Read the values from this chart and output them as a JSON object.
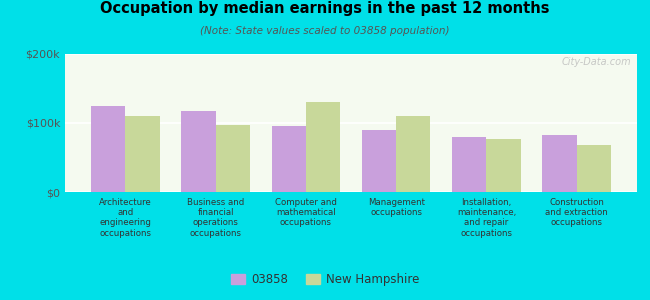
{
  "title": "Occupation by median earnings in the past 12 months",
  "subtitle": "(Note: State values scaled to 03858 population)",
  "categories": [
    "Architecture\nand\nengineering\noccupations",
    "Business and\nfinancial\noperations\noccupations",
    "Computer and\nmathematical\noccupations",
    "Management\noccupations",
    "Installation,\nmaintenance,\nand repair\noccupations",
    "Construction\nand extraction\noccupations"
  ],
  "values_03858": [
    125000,
    117000,
    95000,
    90000,
    80000,
    82000
  ],
  "values_nh": [
    110000,
    97000,
    130000,
    110000,
    77000,
    68000
  ],
  "bar_color_03858": "#c9a0dc",
  "bar_color_nh": "#c8d89a",
  "background_outer": "#00e0e8",
  "background_inner": "#f5faf0",
  "ylim": [
    0,
    200000
  ],
  "yticks": [
    0,
    100000,
    200000
  ],
  "ytick_labels": [
    "$0",
    "$100k",
    "$200k"
  ],
  "legend_03858": "03858",
  "legend_nh": "New Hampshire",
  "watermark": "City-Data.com"
}
